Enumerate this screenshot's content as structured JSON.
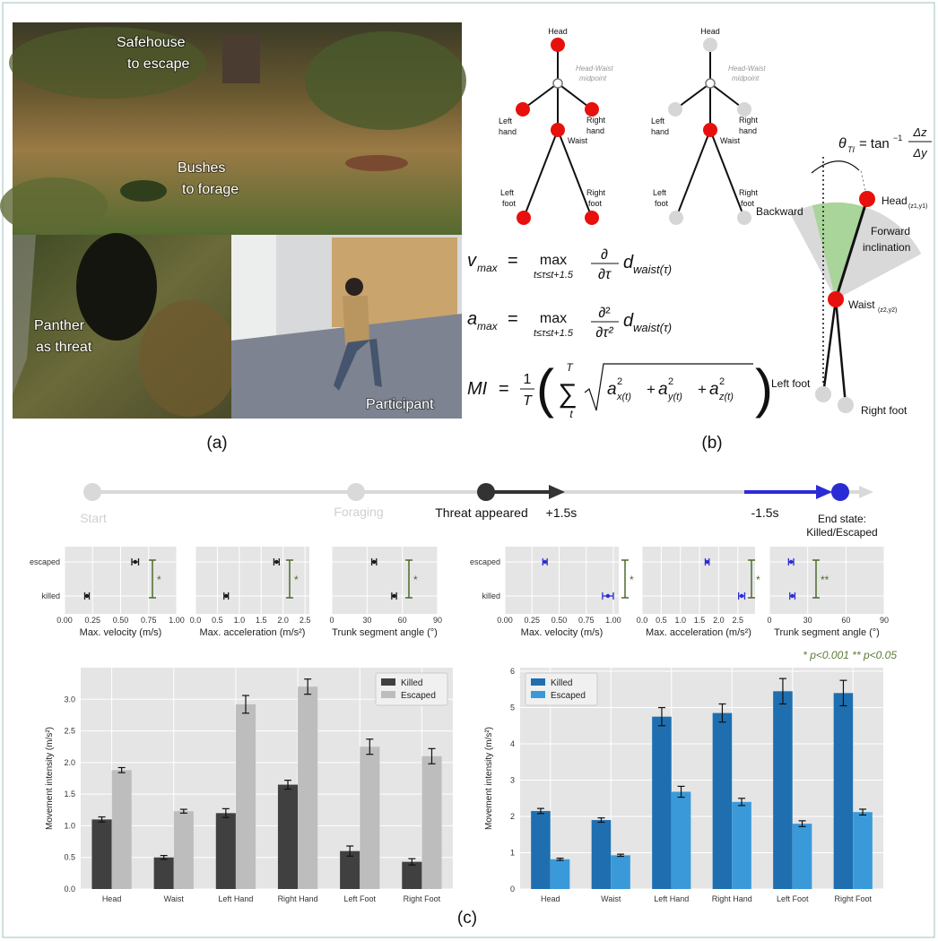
{
  "scene": {
    "labels": [
      [
        "Safehouse",
        "to escape"
      ],
      [
        "Bushes",
        "to forage"
      ],
      [
        "Panther",
        "as threat"
      ],
      [
        "Participant"
      ]
    ],
    "caption": "(a)"
  },
  "skeleton": {
    "head": "Head",
    "midpoint": [
      "Head-Waist",
      "midpoint"
    ],
    "left_hand": [
      "Left",
      "hand"
    ],
    "right_hand": [
      "Right",
      "hand"
    ],
    "waist": "Waist",
    "left_foot": [
      "Left",
      "foot"
    ],
    "right_foot": [
      "Right",
      "foot"
    ]
  },
  "equations": [
    {
      "symbol": "v",
      "sub": "max",
      "eq": "=",
      "op": "max",
      "range": "t≤τ≤t+1.5",
      "num": "∂",
      "den": "∂τ",
      "term": "d",
      "term_sub": "waist(τ)"
    },
    {
      "symbol": "a",
      "sub": "max",
      "eq": "=",
      "op": "max",
      "range": "t≤τ≤t+1.5",
      "num": "∂²",
      "den": "∂τ²",
      "term": "d",
      "term_sub": "waist(τ)"
    },
    {
      "symbol": "MI",
      "eq": "=",
      "num": "1",
      "den": "T",
      "open": "(",
      "close": ")",
      "sum": "∑",
      "sum_top": "T",
      "sum_bot": "t",
      "terms": [
        {
          "base": "a",
          "sup": "2",
          "sub": "x(t)"
        },
        {
          "base": "a",
          "sup": "2",
          "sub": "y(t)"
        },
        {
          "base": "a",
          "sup": "2",
          "sub": "z(t)"
        }
      ],
      "plus": "+"
    }
  ],
  "inclination": {
    "theta": "θ",
    "theta_sub": "TI",
    "eq": "= tan",
    "inv": "−1",
    "num": "Δz",
    "den": "Δy",
    "backward": "Backward",
    "forward": [
      "Forward",
      "inclination"
    ],
    "head": "Head",
    "head_sub": "(z1,y1)",
    "waist": "Waist",
    "waist_sub": "(z2,y2)",
    "left_foot": "Left foot",
    "right_foot": "Right foot"
  },
  "caption_b": "(b)",
  "timeline": {
    "start": "Start",
    "foraging": "Foraging",
    "threat": "Threat appeared",
    "after": "+1.5s",
    "before": "-1.5s",
    "end": [
      "End state:",
      "Killed/Escaped"
    ]
  },
  "chart_data": [
    {
      "type": "dotgroup",
      "categories": [
        "escaped",
        "killed"
      ],
      "color": "#1a1a1a",
      "panels": [
        {
          "xlabel": "Max. velocity (m/s)",
          "xlim": [
            0,
            1
          ],
          "xticks": [
            {
              "value": 0,
              "label": "0.00"
            },
            0.25,
            {
              "value": 0.5,
              "label": "0.50"
            },
            0.75,
            {
              "value": 1,
              "label": "1.00"
            }
          ],
          "values": [
            0.63,
            0.2
          ],
          "errors": [
            0.03,
            0.02
          ],
          "significance": "*"
        },
        {
          "xlabel": "Max. acceleration (m/s²)",
          "xlim": [
            0,
            2.6
          ],
          "xticks": [
            {
              "value": 0,
              "label": "0.0"
            },
            0.5,
            {
              "value": 1,
              "label": "1.0"
            },
            1.5,
            {
              "value": 2,
              "label": "2.0"
            },
            2.5
          ],
          "values": [
            1.85,
            0.7
          ],
          "errors": [
            0.06,
            0.05
          ],
          "significance": "*"
        },
        {
          "xlabel": "Trunk segment angle (°)",
          "xlim": [
            0,
            90
          ],
          "xticks": [
            0,
            30,
            60,
            90
          ],
          "values": [
            36,
            53
          ],
          "errors": [
            2,
            2
          ],
          "significance": "*"
        }
      ]
    },
    {
      "type": "dotgroup",
      "categories": [
        "escaped",
        "killed"
      ],
      "color": "#2b2bd6",
      "panels": [
        {
          "xlabel": "Max. velocity (m/s)",
          "xlim": [
            0,
            1.05
          ],
          "xticks": [
            {
              "value": 0,
              "label": "0.00"
            },
            0.25,
            {
              "value": 0.5,
              "label": "0.50"
            },
            0.75,
            {
              "value": 1,
              "label": "1.00"
            }
          ],
          "values": [
            0.37,
            0.95
          ],
          "errors": [
            0.02,
            0.05
          ],
          "significance": "*"
        },
        {
          "xlabel": "Max. acceleration (m/s²)",
          "xlim": [
            0,
            2.95
          ],
          "xticks": [
            {
              "value": 0,
              "label": "0.0"
            },
            0.5,
            {
              "value": 1,
              "label": "1.0"
            },
            1.5,
            {
              "value": 2,
              "label": "2.0"
            },
            2.5
          ],
          "values": [
            1.7,
            2.6
          ],
          "errors": [
            0.05,
            0.08
          ],
          "significance": "*"
        },
        {
          "xlabel": "Trunk segment angle (°)",
          "xlim": [
            0,
            90
          ],
          "xticks": [
            0,
            30,
            60,
            90
          ],
          "values": [
            17,
            18
          ],
          "errors": [
            2,
            2
          ],
          "significance": "**"
        }
      ]
    },
    {
      "type": "bar",
      "ylabel": "Movement intensity (m/s²)",
      "categories": [
        "Head",
        "Waist",
        "Left Hand",
        "Right Hand",
        "Left Foot",
        "Right Foot"
      ],
      "ylim": [
        0,
        3.5
      ],
      "yticks": [
        {
          "value": 0,
          "label": "0.0"
        },
        0.5,
        {
          "value": 1,
          "label": "1.0"
        },
        1.5,
        {
          "value": 2,
          "label": "2.0"
        },
        2.5,
        {
          "value": 3,
          "label": "3.0"
        }
      ],
      "grid": true,
      "legend": "upper right",
      "series": [
        {
          "name": "Killed",
          "color": "#404040",
          "values": [
            1.1,
            0.5,
            1.2,
            1.65,
            0.6,
            0.43
          ],
          "errors": [
            0.04,
            0.03,
            0.07,
            0.07,
            0.08,
            0.05
          ]
        },
        {
          "name": "Escaped",
          "color": "#bdbdbd",
          "values": [
            1.88,
            1.23,
            2.92,
            3.2,
            2.25,
            2.1
          ],
          "errors": [
            0.04,
            0.03,
            0.14,
            0.12,
            0.12,
            0.12
          ]
        }
      ]
    },
    {
      "type": "bar",
      "ylabel": "Movement intensity (m/s²)",
      "categories": [
        "Head",
        "Waist",
        "Left Hand",
        "Right Hand",
        "Left Foot",
        "Right Foot"
      ],
      "ylim": [
        0,
        6.1
      ],
      "yticks": [
        0,
        1,
        2,
        3,
        4,
        5,
        6
      ],
      "grid": true,
      "legend": "upper left",
      "series": [
        {
          "name": "Killed",
          "color": "#1f6fb0",
          "values": [
            2.15,
            1.9,
            4.75,
            4.85,
            5.45,
            5.4
          ],
          "errors": [
            0.07,
            0.06,
            0.25,
            0.25,
            0.35,
            0.35
          ]
        },
        {
          "name": "Escaped",
          "color": "#3a9ad9",
          "values": [
            0.82,
            0.93,
            2.68,
            2.4,
            1.8,
            2.12
          ],
          "errors": [
            0.03,
            0.03,
            0.15,
            0.1,
            0.08,
            0.08
          ]
        }
      ]
    }
  ],
  "footnote": "* p<0.001 ** p<0.05",
  "caption_c": "(c)"
}
